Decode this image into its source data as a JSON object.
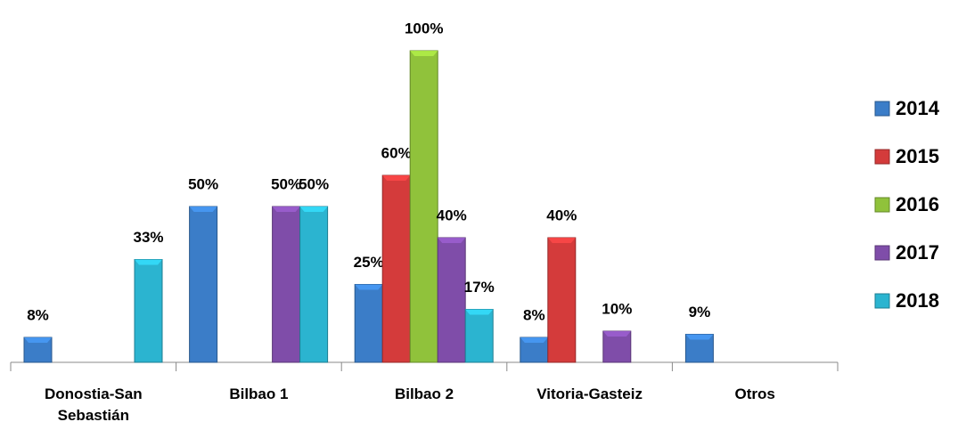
{
  "chart_data": {
    "type": "bar",
    "categories": [
      "Donostia-San Sebastián",
      "Bilbao 1",
      "Bilbao 2",
      "Vitoria-Gasteiz",
      "Otros"
    ],
    "series": [
      {
        "name": "2014",
        "color": "#3b7dc8",
        "values": [
          8,
          50,
          25,
          8,
          9
        ],
        "value_labels": [
          "8%",
          "50%",
          "25%",
          "8%",
          "9%"
        ]
      },
      {
        "name": "2015",
        "color": "#d43b3b",
        "values": [
          null,
          null,
          60,
          40,
          null
        ],
        "value_labels": [
          null,
          null,
          "60%",
          "40%",
          null
        ]
      },
      {
        "name": "2016",
        "color": "#90c23b",
        "values": [
          null,
          null,
          100,
          null,
          null
        ],
        "value_labels": [
          null,
          null,
          "100%",
          null,
          null
        ]
      },
      {
        "name": "2017",
        "color": "#7f4da9",
        "values": [
          null,
          50,
          40,
          10,
          null
        ],
        "value_labels": [
          null,
          "50%",
          "40%",
          "10%",
          null
        ]
      },
      {
        "name": "2018",
        "color": "#2bb4d0",
        "values": [
          33,
          50,
          17,
          null,
          null
        ],
        "value_labels": [
          "33%",
          "50%",
          "17%",
          null,
          null
        ]
      }
    ],
    "ylim": [
      0,
      100
    ],
    "legend": "right"
  }
}
